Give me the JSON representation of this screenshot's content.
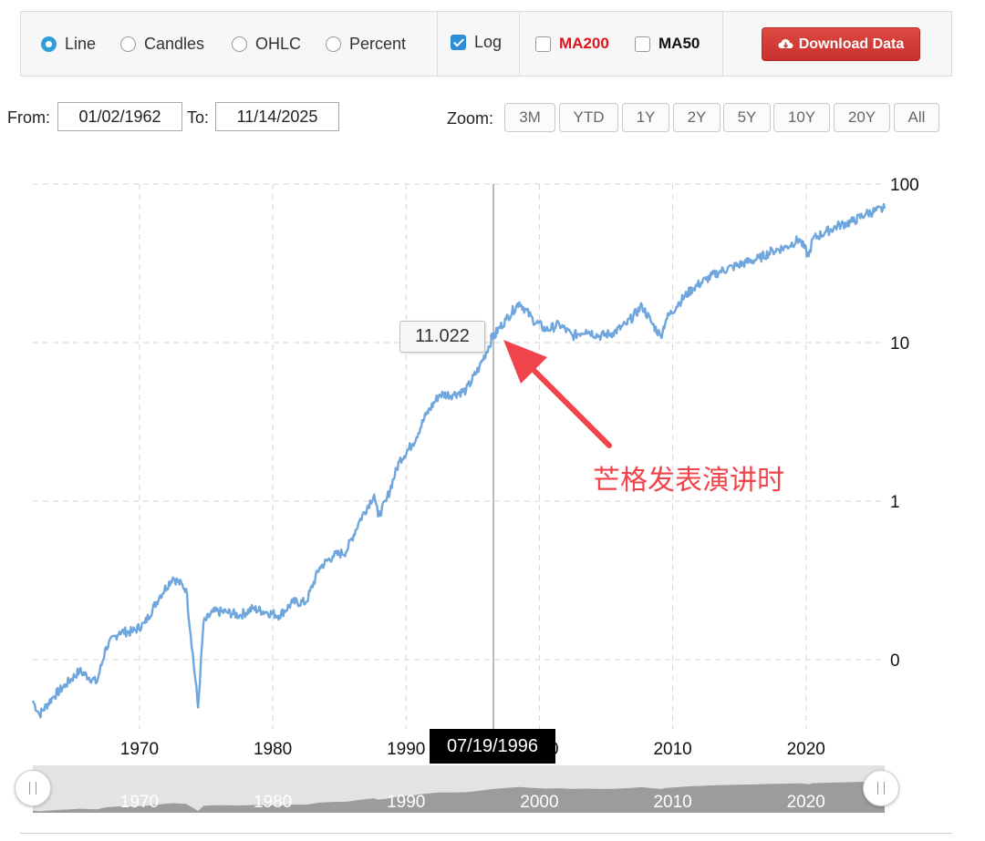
{
  "controls": {
    "chart_types": [
      {
        "label": "Line",
        "selected": true
      },
      {
        "label": "Candles",
        "selected": false
      },
      {
        "label": "OHLC",
        "selected": false
      },
      {
        "label": "Percent",
        "selected": false
      }
    ],
    "log": {
      "label": "Log",
      "checked": true
    },
    "ma200": {
      "label": "MA200",
      "checked": false,
      "color": "#e0141e"
    },
    "ma50": {
      "label": "MA50",
      "checked": false
    },
    "download_label": "Download Data",
    "download_icon": "cloud-download-icon"
  },
  "range": {
    "from_label": "From:",
    "from_value": "01/02/1962",
    "to_label": "To:",
    "to_value": "11/14/2025"
  },
  "zoom": {
    "label": "Zoom:",
    "buttons": [
      "3M",
      "YTD",
      "1Y",
      "2Y",
      "5Y",
      "10Y",
      "20Y",
      "All"
    ]
  },
  "crosshair": {
    "date": "07/19/1996",
    "value_label": "11.022",
    "annotation": "芒格发表演讲时",
    "annotation_color": "#f0444a"
  },
  "navigator": {
    "tick_labels": [
      "1970",
      "1980",
      "1990",
      "2000",
      "2010",
      "2020"
    ]
  },
  "chart_data": {
    "type": "line",
    "title": "",
    "xlabel": "",
    "ylabel": "",
    "log_scale": true,
    "grid": true,
    "line_color": "#6ea6dd",
    "x_ticks": [
      "1970",
      "1980",
      "1990",
      "2000",
      "2010",
      "2020"
    ],
    "y_ticks": [
      "100",
      "10",
      "1",
      "0"
    ],
    "y_tick_values": [
      100,
      10,
      1,
      0.1
    ],
    "x_range": [
      1962.0,
      2025.9
    ],
    "y_range": [
      0.04,
      100
    ],
    "series": [
      {
        "x": [
          1962.0,
          1962.5,
          1963.5,
          1964.5,
          1965.5,
          1966.8,
          1967.5,
          1968.5,
          1969.5,
          1970.4,
          1971.5,
          1972.5,
          1973.5,
          1974.4,
          1974.8,
          1975.5,
          1976.5,
          1977.5,
          1978.5,
          1979.5,
          1980.5,
          1981.5,
          1982.5,
          1983.5,
          1984.5,
          1985.5,
          1986.5,
          1987.6,
          1987.9,
          1988.5,
          1989.5,
          1990.5,
          1991.5,
          1992.5,
          1993.5,
          1994.5,
          1995.5,
          1996.55,
          1997.5,
          1998.5,
          1999.5,
          2000.5,
          2001.5,
          2002.5,
          2003.5,
          2004.5,
          2005.5,
          2006.5,
          2007.7,
          2008.5,
          2009.1,
          2009.5,
          2010.5,
          2011.5,
          2012.5,
          2013.5,
          2014.5,
          2015.5,
          2016.5,
          2017.5,
          2018.5,
          2019.5,
          2020.2,
          2020.5,
          2021.5,
          2022.5,
          2023.5,
          2024.5,
          2025.9
        ],
        "values": [
          0.055,
          0.045,
          0.058,
          0.07,
          0.085,
          0.072,
          0.12,
          0.15,
          0.15,
          0.17,
          0.25,
          0.33,
          0.28,
          0.05,
          0.17,
          0.2,
          0.2,
          0.19,
          0.21,
          0.2,
          0.19,
          0.23,
          0.23,
          0.38,
          0.45,
          0.48,
          0.75,
          1.1,
          0.8,
          1.0,
          1.8,
          2.3,
          3.5,
          4.7,
          4.7,
          5.0,
          7.0,
          11.022,
          14.0,
          18.0,
          14.0,
          12.0,
          13.0,
          11.0,
          12.0,
          11.0,
          11.5,
          13.0,
          17.0,
          13.0,
          11.0,
          14.0,
          18.0,
          22.0,
          25.0,
          28.0,
          30.0,
          32.0,
          34.0,
          38.0,
          40.0,
          45.0,
          35.0,
          45.0,
          50.0,
          55.0,
          58.0,
          65.0,
          70.0
        ]
      }
    ]
  }
}
